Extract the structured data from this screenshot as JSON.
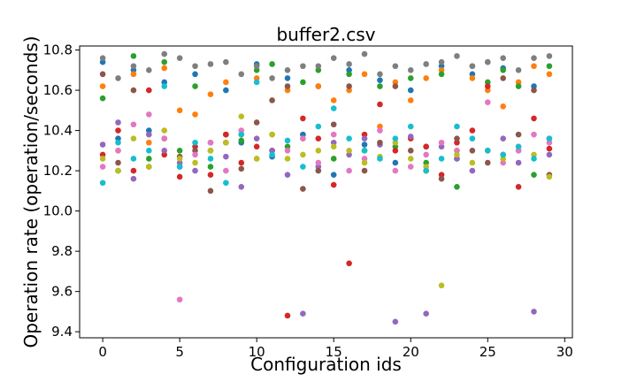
{
  "chart_data": {
    "type": "scatter",
    "title": "buffer2.csv",
    "xlabel": "Configuration ids",
    "ylabel": "Operation rate (operation/seconds)",
    "xlim": [
      -1.5,
      30.5
    ],
    "ylim": [
      9.37,
      10.82
    ],
    "xticks": [
      0,
      5,
      10,
      15,
      20,
      25,
      30
    ],
    "yticks": [
      9.4,
      9.6,
      9.8,
      10.0,
      10.2,
      10.4,
      10.6,
      10.8
    ],
    "grid": false,
    "legend": "none",
    "palette": [
      "#1f77b4",
      "#ff7f0e",
      "#2ca02c",
      "#d62728",
      "#9467bd",
      "#8c564b",
      "#e377c2",
      "#7f7f7f",
      "#bcbd22",
      "#17becf"
    ],
    "n_configs": 30,
    "series": [
      {
        "color": "#1f77b4",
        "values": [
          10.74,
          10.36,
          10.7,
          10.4,
          10.64,
          10.22,
          10.68,
          10.3,
          10.6,
          10.34,
          10.73,
          10.27,
          10.66,
          10.38,
          10.62,
          10.18,
          10.7,
          10.33,
          10.65,
          10.24,
          10.6,
          10.32,
          10.72,
          10.26,
          10.68,
          10.74,
          10.71,
          10.3,
          10.62,
          10.36
        ]
      },
      {
        "color": "#ff7f0e",
        "values": [
          10.62,
          10.3,
          10.68,
          10.34,
          10.71,
          10.5,
          10.48,
          10.58,
          10.64,
          10.38,
          10.66,
          10.3,
          10.6,
          10.36,
          10.62,
          10.55,
          10.6,
          10.68,
          10.42,
          10.64,
          10.55,
          10.66,
          10.7,
          10.3,
          10.66,
          10.6,
          10.52,
          10.64,
          10.72,
          10.68
        ]
      },
      {
        "color": "#2ca02c",
        "values": [
          10.56,
          10.2,
          10.77,
          10.26,
          10.74,
          10.3,
          10.62,
          10.22,
          10.38,
          10.35,
          10.7,
          10.73,
          10.32,
          10.64,
          10.7,
          10.26,
          10.68,
          10.3,
          10.62,
          10.32,
          10.66,
          10.24,
          10.68,
          10.12,
          10.72,
          10.64,
          10.7,
          10.62,
          10.18,
          10.72
        ]
      },
      {
        "color": "#d62728",
        "values": [
          10.28,
          10.4,
          10.2,
          10.6,
          10.28,
          10.17,
          10.32,
          10.18,
          10.38,
          10.24,
          10.32,
          10.3,
          9.48,
          10.46,
          10.36,
          10.13,
          9.74,
          10.38,
          10.53,
          10.3,
          10.36,
          10.32,
          10.18,
          10.34,
          10.4,
          10.62,
          10.28,
          10.12,
          10.46,
          10.31
        ]
      },
      {
        "color": "#9467bd",
        "values": [
          10.33,
          10.44,
          10.16,
          10.38,
          10.3,
          10.24,
          10.2,
          10.34,
          10.27,
          10.12,
          10.36,
          10.3,
          10.18,
          9.49,
          10.22,
          10.34,
          10.28,
          10.36,
          10.33,
          9.45,
          10.37,
          9.49,
          10.32,
          10.26,
          10.2,
          10.3,
          10.36,
          10.24,
          9.5,
          10.28
        ]
      },
      {
        "color": "#8c564b",
        "values": [
          10.68,
          10.24,
          10.6,
          10.22,
          10.36,
          10.27,
          10.3,
          10.1,
          10.34,
          10.21,
          10.44,
          10.55,
          10.62,
          10.11,
          10.2,
          10.43,
          10.62,
          10.2,
          10.34,
          10.62,
          10.3,
          10.2,
          10.16,
          10.36,
          10.3,
          10.24,
          10.66,
          10.38,
          10.6,
          10.18
        ]
      },
      {
        "color": "#e377c2",
        "values": [
          10.22,
          10.3,
          10.43,
          10.48,
          10.36,
          9.56,
          10.28,
          10.34,
          10.2,
          10.4,
          10.26,
          10.38,
          10.3,
          10.36,
          10.24,
          10.38,
          10.2,
          10.26,
          10.4,
          10.2,
          10.22,
          10.28,
          10.34,
          10.3,
          10.36,
          10.54,
          10.24,
          10.3,
          10.38,
          10.34
        ]
      },
      {
        "color": "#7f7f7f",
        "values": [
          10.76,
          10.66,
          10.72,
          10.7,
          10.78,
          10.76,
          10.72,
          10.73,
          10.74,
          10.68,
          10.72,
          10.66,
          10.7,
          10.72,
          10.72,
          10.76,
          10.73,
          10.78,
          10.68,
          10.72,
          10.7,
          10.73,
          10.74,
          10.77,
          10.72,
          10.74,
          10.76,
          10.7,
          10.76,
          10.77
        ]
      },
      {
        "color": "#bcbd22",
        "values": [
          10.26,
          10.2,
          10.36,
          10.22,
          10.4,
          10.26,
          10.24,
          10.3,
          10.34,
          10.47,
          10.26,
          10.38,
          10.26,
          10.28,
          10.3,
          10.32,
          10.3,
          10.24,
          10.27,
          10.34,
          10.26,
          10.22,
          9.63,
          10.28,
          10.24,
          10.3,
          10.26,
          10.32,
          10.28,
          10.17
        ]
      },
      {
        "color": "#17becf",
        "values": [
          10.14,
          10.34,
          10.26,
          10.3,
          10.62,
          10.22,
          10.34,
          10.26,
          10.14,
          10.38,
          10.64,
          10.28,
          10.35,
          10.22,
          10.42,
          10.51,
          10.36,
          10.3,
          10.26,
          10.36,
          10.42,
          10.2,
          10.26,
          10.42,
          10.36,
          10.3,
          10.28,
          10.32,
          10.26,
          10.36
        ]
      }
    ]
  }
}
